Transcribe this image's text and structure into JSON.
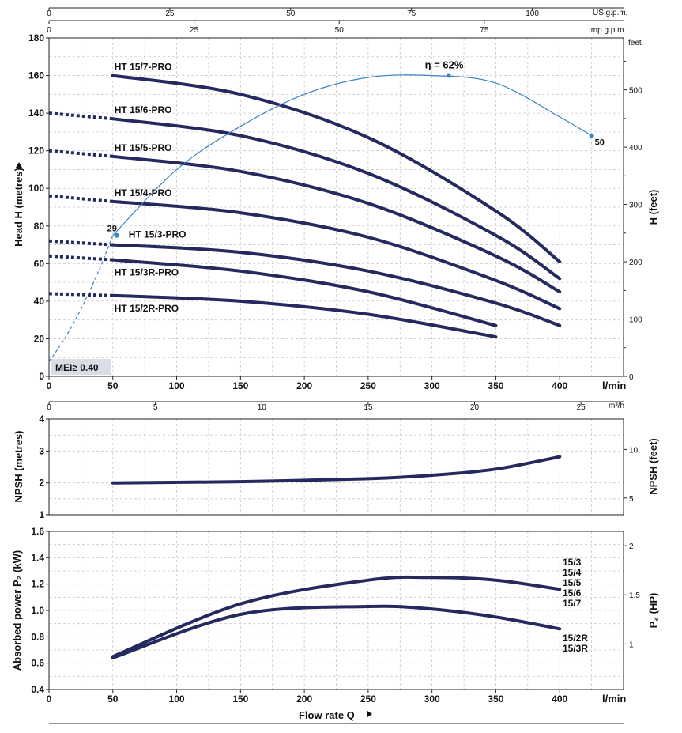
{
  "colors": {
    "curve": "#252a5e",
    "efficiency": "#3b82c4",
    "mei_box": "#d8dde8"
  },
  "chart_data": [
    {
      "id": "head",
      "type": "line",
      "xlabel_unit": "l/min",
      "ylabel": "Head  H  (metres)",
      "ylabel_right": "H (feet)",
      "right_unit": "feet",
      "xlim": [
        0,
        450
      ],
      "ylim": [
        0,
        180
      ],
      "xticks": [
        0,
        50,
        100,
        150,
        200,
        250,
        300,
        350,
        400
      ],
      "yticks": [
        0,
        20,
        40,
        60,
        80,
        100,
        120,
        140,
        160,
        180
      ],
      "feet_ticks": [
        0,
        100,
        200,
        300,
        400,
        500
      ],
      "usgpm_label": "US g.p.m.",
      "usgpm_ticks": [
        0,
        25,
        50,
        75,
        100
      ],
      "impgpm_label": "Imp g.p.m.",
      "impgpm_ticks": [
        0,
        25,
        50,
        75
      ],
      "m3h_label": "m³/h",
      "m3h_ticks": [
        0,
        5,
        10,
        15,
        20,
        25
      ],
      "series": [
        {
          "name": "HT 15/7-PRO",
          "x": [
            50,
            150,
            250,
            350,
            400
          ],
          "y": [
            160,
            150,
            127,
            88,
            61
          ],
          "dash_x": [],
          "dash_y": []
        },
        {
          "name": "HT 15/6-PRO",
          "x": [
            50,
            150,
            250,
            350,
            400
          ],
          "y": [
            137,
            128,
            108,
            75,
            52
          ],
          "dash_x": [
            0,
            50
          ],
          "dash_y": [
            140,
            137
          ]
        },
        {
          "name": "HT 15/5-PRO",
          "x": [
            50,
            150,
            250,
            350,
            400
          ],
          "y": [
            117,
            109,
            92,
            64,
            45
          ],
          "dash_x": [
            0,
            50
          ],
          "dash_y": [
            120,
            117
          ]
        },
        {
          "name": "HT 15/4-PRO",
          "x": [
            50,
            150,
            250,
            350,
            400
          ],
          "y": [
            93,
            87,
            74,
            51,
            36
          ],
          "dash_x": [
            0,
            50
          ],
          "dash_y": [
            96,
            93
          ]
        },
        {
          "name": "HT 15/3-PRO",
          "x": [
            50,
            150,
            250,
            350,
            400
          ],
          "y": [
            70,
            66,
            56,
            39,
            27
          ],
          "dash_x": [
            0,
            50
          ],
          "dash_y": [
            72,
            70
          ]
        },
        {
          "name": "HT 15/3R-PRO",
          "x": [
            50,
            150,
            250,
            350
          ],
          "y": [
            62,
            56,
            45,
            27
          ],
          "dash_x": [
            0,
            50
          ],
          "dash_y": [
            64,
            62
          ]
        },
        {
          "name": "HT 15/2R-PRO",
          "x": [
            50,
            150,
            250,
            350
          ],
          "y": [
            43,
            40,
            33,
            21
          ],
          "dash_x": [
            0,
            50
          ],
          "dash_y": [
            44,
            43
          ]
        }
      ],
      "efficiency": {
        "label": "η = 62%",
        "x": [
          50,
          100,
          150,
          200,
          250,
          300,
          350,
          400,
          425
        ],
        "y": [
          75,
          110,
          133,
          150,
          159,
          160,
          156,
          138,
          128
        ],
        "dash_x": [
          0,
          50
        ],
        "dash_y": [
          8,
          75
        ],
        "points": [
          {
            "x": 53,
            "y": 75,
            "label": "29"
          },
          {
            "x": 313,
            "y": 160,
            "label": ""
          },
          {
            "x": 425,
            "y": 128,
            "label": "50"
          }
        ]
      },
      "mei_label": "MEI≥ 0.40"
    },
    {
      "id": "npsh",
      "type": "line",
      "ylabel": "NPSH  (metres)",
      "ylabel_right": "NPSH  (feet)",
      "xlim": [
        0,
        450
      ],
      "ylim": [
        1,
        4
      ],
      "yticks": [
        1,
        2,
        3,
        4
      ],
      "feet_ticks": [
        5,
        10
      ],
      "series": [
        {
          "name": "NPSH",
          "x": [
            50,
            150,
            250,
            300,
            350,
            400
          ],
          "y": [
            2.0,
            2.04,
            2.13,
            2.24,
            2.43,
            2.82
          ]
        }
      ]
    },
    {
      "id": "power",
      "type": "line",
      "ylabel": "Absorbed power  P₂  (kW)",
      "ylabel_right": "P₂  (HP)",
      "xlabel": "Flow rate  Q",
      "xlabel_unit": "l/min",
      "xlim": [
        0,
        450
      ],
      "ylim": [
        0.4,
        1.6
      ],
      "xticks": [
        0,
        50,
        100,
        150,
        200,
        250,
        300,
        350,
        400
      ],
      "yticks": [
        0.4,
        0.6,
        0.8,
        1.0,
        1.2,
        1.4,
        1.6
      ],
      "ytick_labels": [
        "0.4",
        "0.6",
        "0.8",
        "1.0",
        "1.2",
        "1.4",
        "1.6"
      ],
      "hp_ticks": [
        1,
        1.5,
        2
      ],
      "series": [
        {
          "name": "15/3 15/4 15/5 15/6 15/7",
          "labels": [
            "15/3",
            "15/4",
            "15/5",
            "15/6",
            "15/7"
          ],
          "x": [
            50,
            150,
            250,
            300,
            350,
            400
          ],
          "y": [
            0.65,
            1.05,
            1.23,
            1.25,
            1.23,
            1.16
          ]
        },
        {
          "name": "15/2R 15/3R",
          "labels": [
            "15/2R",
            "15/3R"
          ],
          "x": [
            50,
            150,
            250,
            300,
            350,
            400
          ],
          "y": [
            0.64,
            0.97,
            1.03,
            1.01,
            0.95,
            0.86
          ]
        }
      ]
    }
  ]
}
